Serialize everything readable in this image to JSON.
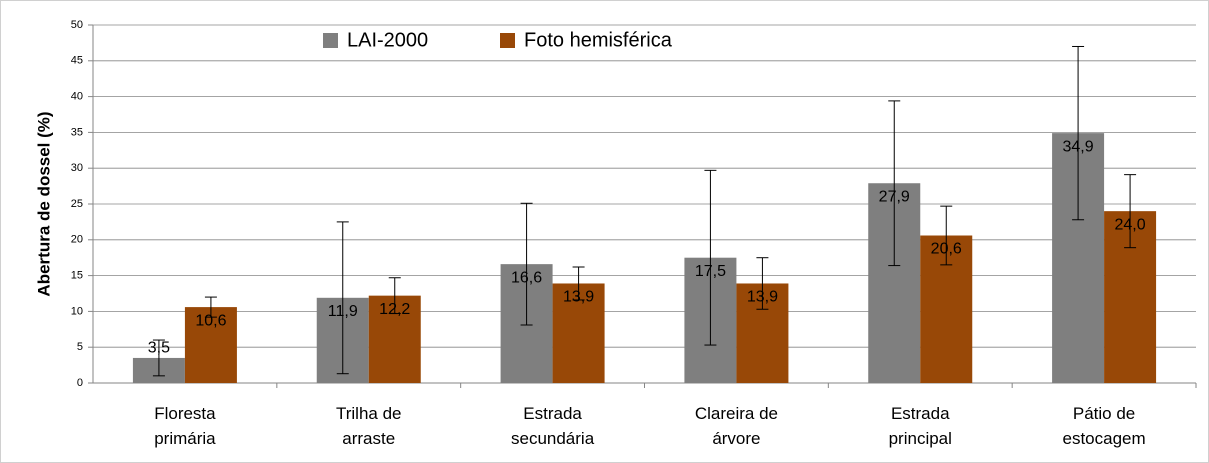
{
  "chart_data": {
    "type": "bar",
    "y_label": "Abertura de dossel (%)",
    "categories": [
      "Floresta primária",
      "Trilha de arraste",
      "Estrada secundária",
      "Clareira de árvore",
      "Estrada principal",
      "Pátio de estocagem"
    ],
    "series": [
      {
        "name": "LAI-2000",
        "color": "#7f7f7f",
        "values": [
          3.5,
          11.9,
          16.6,
          17.5,
          27.9,
          34.9
        ],
        "value_labels": [
          "3,5",
          "11,9",
          "16,6",
          "17,5",
          "27,9",
          "34,9"
        ],
        "errors": [
          2.5,
          10.6,
          8.5,
          12.2,
          11.5,
          12.1
        ]
      },
      {
        "name": "Foto hemisférica",
        "color": "#984807",
        "values": [
          10.6,
          12.2,
          13.9,
          13.9,
          20.6,
          24.0
        ],
        "value_labels": [
          "10,6",
          "12,2",
          "13,9",
          "13,9",
          "20,6",
          "24,0"
        ],
        "errors": [
          1.4,
          2.5,
          2.3,
          3.6,
          4.1,
          5.1
        ]
      }
    ],
    "ylim": [
      0,
      50
    ],
    "yticks": [
      0,
      5,
      10,
      15,
      20,
      25,
      30,
      35,
      40,
      45,
      50
    ],
    "grid": true
  }
}
